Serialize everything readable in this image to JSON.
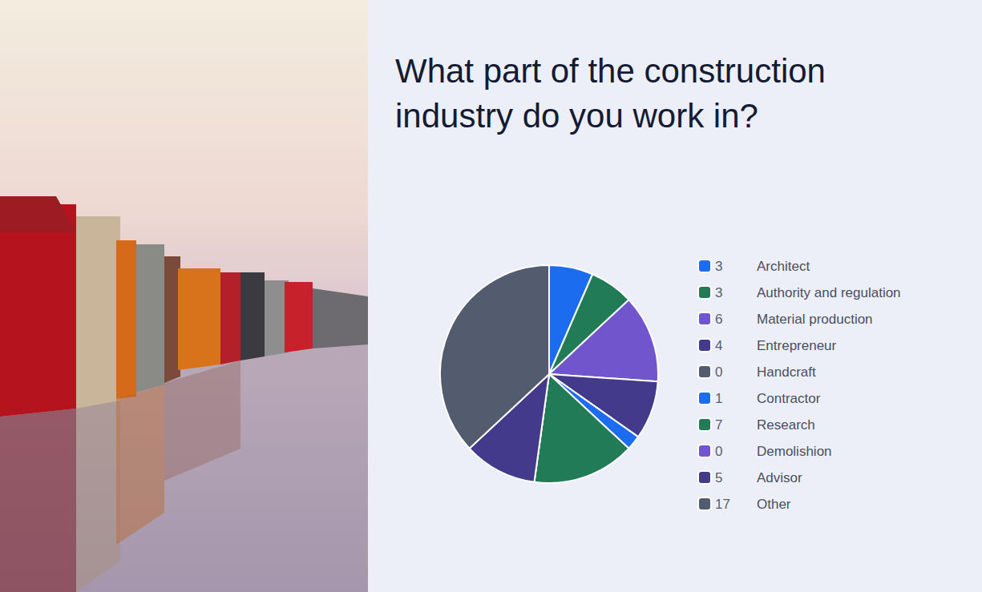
{
  "chart_data": {
    "type": "pie",
    "title": "What part of the construction industry do you work in?",
    "categories": [
      "Architect",
      "Authority and regulation",
      "Material production",
      "Entrepreneur",
      "Handcraft",
      "Contractor",
      "Research",
      "Demolishion",
      "Advisor",
      "Other"
    ],
    "values": [
      3,
      3,
      6,
      4,
      0,
      1,
      7,
      0,
      5,
      17
    ],
    "colors": [
      "#1c6cf0",
      "#217b57",
      "#7055cc",
      "#433a8c",
      "#535b6e",
      "#1c6cf0",
      "#217b57",
      "#7055cc",
      "#433a8c",
      "#535b6e"
    ],
    "legend": "right"
  }
}
